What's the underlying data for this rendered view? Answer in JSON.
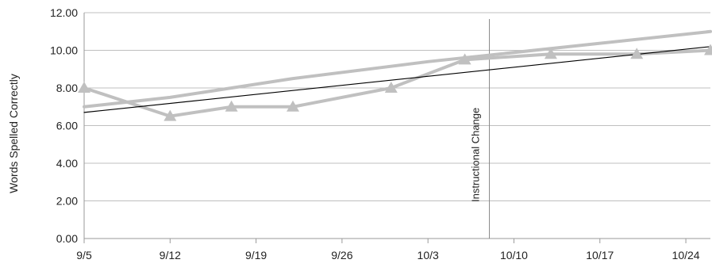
{
  "chart_data": {
    "type": "line",
    "title": "",
    "xlabel": "",
    "ylabel": "Words Spelled Correctly",
    "ylim": [
      0,
      12
    ],
    "y_ticks": [
      "0.00",
      "2.00",
      "4.00",
      "6.00",
      "8.00",
      "10.00",
      "12.00"
    ],
    "x_ticks": [
      "9/5",
      "9/12",
      "9/19",
      "9/26",
      "10/3",
      "10/10",
      "10/17",
      "10/24"
    ],
    "x_range": [
      "9/5",
      "10/26"
    ],
    "grid": true,
    "legend": "none",
    "colors": {
      "data": "#c0c0c0",
      "goal": "#c0c0c0",
      "trend": "#000000",
      "grid": "#bfbfbf",
      "phase": "#888888"
    },
    "series": [
      {
        "role": "data",
        "marker": "triangle",
        "x": [
          "9/5",
          "9/12",
          "9/17",
          "9/22",
          "9/30",
          "10/6",
          "10/13",
          "10/20",
          "10/26"
        ],
        "y": [
          8.0,
          6.5,
          7.0,
          7.0,
          8.0,
          9.5,
          9.8,
          9.8,
          10.0
        ]
      },
      {
        "role": "goal",
        "x": [
          "9/5",
          "9/12",
          "9/22",
          "10/3",
          "10/26"
        ],
        "y": [
          7.0,
          7.5,
          8.5,
          9.4,
          11.0
        ]
      },
      {
        "role": "trend",
        "x": [
          "9/5",
          "10/26"
        ],
        "y": [
          6.7,
          10.2
        ]
      }
    ],
    "annotations": [
      {
        "text": "Instructional Change",
        "x": "10/8"
      }
    ]
  }
}
